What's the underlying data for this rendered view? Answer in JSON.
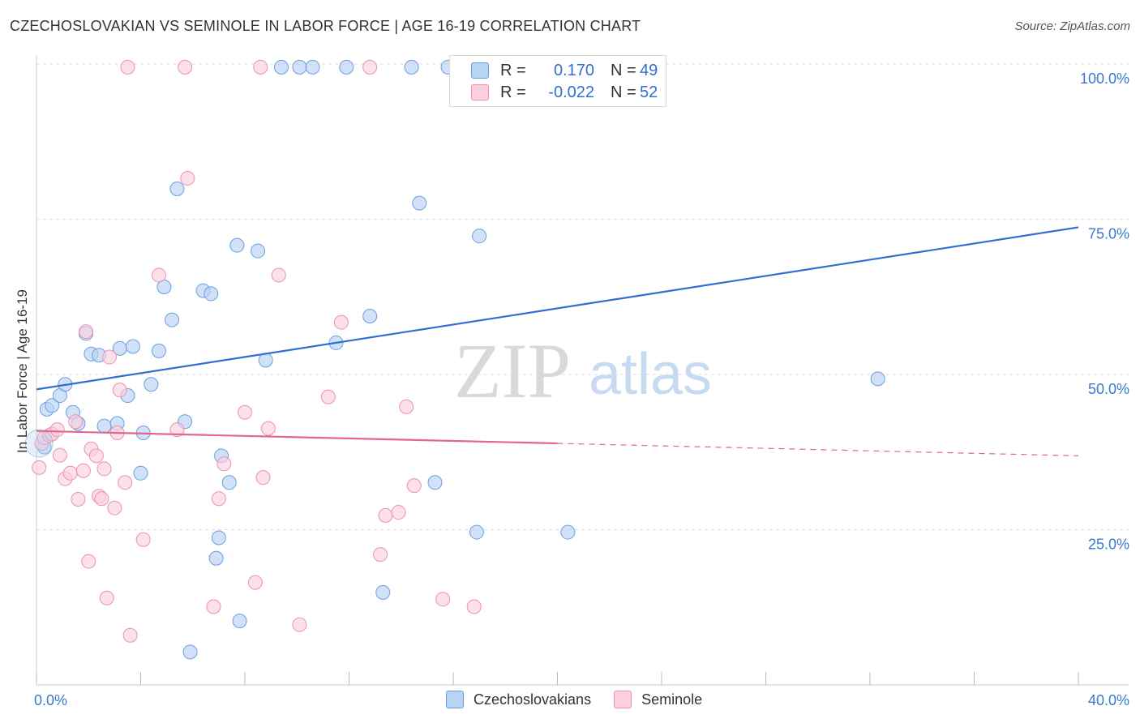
{
  "title": "CZECHOSLOVAKIAN VS SEMINOLE IN LABOR FORCE | AGE 16-19 CORRELATION CHART",
  "source": "Source: ZipAtlas.com",
  "watermark": {
    "zip": "ZIP",
    "atlas": "atlas"
  },
  "legend": {
    "rows": [
      {
        "r_label": "R =",
        "r_value": "0.170",
        "n_label": "N =",
        "n_value": "49"
      },
      {
        "r_label": "R =",
        "r_value": "-0.022",
        "n_label": "N =",
        "n_value": "52"
      }
    ]
  },
  "bottom_legend": {
    "series1": "Czechoslovakians",
    "series2": "Seminole"
  },
  "colors": {
    "blue_fill": "#b8d3f4",
    "blue_stroke": "#6a9ee0",
    "blue_line": "#2f6fd2",
    "pink_fill": "#fbd0de",
    "pink_stroke": "#ee8fb0",
    "pink_line": "#e2668f",
    "grid": "#dddddd",
    "tick_text": "#3a78d0"
  },
  "chart_data": {
    "type": "scatter",
    "title": "CZECHOSLOVAKIAN VS SEMINOLE IN LABOR FORCE | AGE 16-19 CORRELATION CHART",
    "xlabel": "",
    "ylabel": "In Labor Force | Age 16-19",
    "xlim": [
      0,
      40
    ],
    "ylim": [
      0,
      100
    ],
    "x_tick_labels": [
      "0.0%",
      "40.0%"
    ],
    "y_ticks": [
      25,
      50,
      75,
      100
    ],
    "y_tick_labels": [
      "25.0%",
      "50.0%",
      "75.0%",
      "100.0%"
    ],
    "series": [
      {
        "name": "Czechoslovakians",
        "r": 0.17,
        "n": 49,
        "trend": {
          "x": [
            0,
            40
          ],
          "y": [
            47.6,
            73.7
          ]
        },
        "points": [
          {
            "x": 0.3,
            "y": 38.3
          },
          {
            "x": 0.4,
            "y": 44.4
          },
          {
            "x": 0.6,
            "y": 45.0
          },
          {
            "x": 0.9,
            "y": 46.6
          },
          {
            "x": 1.1,
            "y": 48.4
          },
          {
            "x": 1.4,
            "y": 43.9
          },
          {
            "x": 1.6,
            "y": 42.1
          },
          {
            "x": 1.9,
            "y": 56.6
          },
          {
            "x": 2.1,
            "y": 53.3
          },
          {
            "x": 2.4,
            "y": 53.1
          },
          {
            "x": 2.6,
            "y": 41.7
          },
          {
            "x": 3.1,
            "y": 42.1
          },
          {
            "x": 3.2,
            "y": 54.2
          },
          {
            "x": 3.5,
            "y": 46.6
          },
          {
            "x": 3.7,
            "y": 54.5
          },
          {
            "x": 4.0,
            "y": 34.1
          },
          {
            "x": 4.1,
            "y": 40.6
          },
          {
            "x": 4.4,
            "y": 48.4
          },
          {
            "x": 4.7,
            "y": 53.8
          },
          {
            "x": 4.9,
            "y": 64.1
          },
          {
            "x": 5.2,
            "y": 58.8
          },
          {
            "x": 5.4,
            "y": 79.9
          },
          {
            "x": 5.7,
            "y": 42.4
          },
          {
            "x": 5.9,
            "y": 5.3
          },
          {
            "x": 6.4,
            "y": 63.5
          },
          {
            "x": 6.7,
            "y": 63.0
          },
          {
            "x": 6.9,
            "y": 20.4
          },
          {
            "x": 7.1,
            "y": 36.9
          },
          {
            "x": 7.4,
            "y": 32.6
          },
          {
            "x": 7.7,
            "y": 70.8
          },
          {
            "x": 7.8,
            "y": 10.3
          },
          {
            "x": 8.5,
            "y": 69.9
          },
          {
            "x": 8.8,
            "y": 52.3
          },
          {
            "x": 9.4,
            "y": 99.5
          },
          {
            "x": 10.1,
            "y": 99.5
          },
          {
            "x": 10.6,
            "y": 99.5
          },
          {
            "x": 11.5,
            "y": 55.1
          },
          {
            "x": 11.9,
            "y": 99.5
          },
          {
            "x": 12.8,
            "y": 59.4
          },
          {
            "x": 13.3,
            "y": 14.9
          },
          {
            "x": 14.4,
            "y": 99.5
          },
          {
            "x": 14.7,
            "y": 77.6
          },
          {
            "x": 15.3,
            "y": 32.6
          },
          {
            "x": 15.8,
            "y": 99.5
          },
          {
            "x": 16.9,
            "y": 24.6
          },
          {
            "x": 17.0,
            "y": 72.3
          },
          {
            "x": 20.4,
            "y": 24.6
          },
          {
            "x": 32.3,
            "y": 49.3
          },
          {
            "x": 7.0,
            "y": 23.7
          }
        ]
      },
      {
        "name": "Seminole",
        "r": -0.022,
        "n": 52,
        "trend": {
          "x": [
            0,
            20
          ],
          "y": [
            40.9,
            38.9
          ],
          "dashed_to": {
            "x": 40,
            "y": 36.9
          }
        },
        "points": [
          {
            "x": 0.1,
            "y": 35.0
          },
          {
            "x": 0.2,
            "y": 38.9
          },
          {
            "x": 0.3,
            "y": 39.8
          },
          {
            "x": 0.5,
            "y": 40.2
          },
          {
            "x": 0.6,
            "y": 40.4
          },
          {
            "x": 0.8,
            "y": 41.1
          },
          {
            "x": 0.9,
            "y": 37.0
          },
          {
            "x": 1.1,
            "y": 33.2
          },
          {
            "x": 1.3,
            "y": 34.1
          },
          {
            "x": 1.5,
            "y": 42.4
          },
          {
            "x": 1.6,
            "y": 29.9
          },
          {
            "x": 1.8,
            "y": 34.5
          },
          {
            "x": 1.9,
            "y": 56.9
          },
          {
            "x": 2.0,
            "y": 19.9
          },
          {
            "x": 2.1,
            "y": 38.0
          },
          {
            "x": 2.3,
            "y": 36.9
          },
          {
            "x": 2.4,
            "y": 30.4
          },
          {
            "x": 2.5,
            "y": 30.0
          },
          {
            "x": 2.6,
            "y": 34.8
          },
          {
            "x": 2.7,
            "y": 14.0
          },
          {
            "x": 2.8,
            "y": 52.8
          },
          {
            "x": 3.0,
            "y": 28.5
          },
          {
            "x": 3.1,
            "y": 40.6
          },
          {
            "x": 3.2,
            "y": 47.5
          },
          {
            "x": 3.4,
            "y": 32.6
          },
          {
            "x": 3.5,
            "y": 99.5
          },
          {
            "x": 3.6,
            "y": 8.0
          },
          {
            "x": 4.1,
            "y": 23.4
          },
          {
            "x": 4.7,
            "y": 66.0
          },
          {
            "x": 5.4,
            "y": 41.1
          },
          {
            "x": 5.7,
            "y": 99.5
          },
          {
            "x": 5.8,
            "y": 81.6
          },
          {
            "x": 6.8,
            "y": 12.6
          },
          {
            "x": 7.0,
            "y": 30.0
          },
          {
            "x": 7.2,
            "y": 35.6
          },
          {
            "x": 8.0,
            "y": 43.9
          },
          {
            "x": 8.4,
            "y": 16.5
          },
          {
            "x": 8.7,
            "y": 33.4
          },
          {
            "x": 8.9,
            "y": 41.3
          },
          {
            "x": 8.6,
            "y": 99.5
          },
          {
            "x": 9.3,
            "y": 66.0
          },
          {
            "x": 10.1,
            "y": 9.7
          },
          {
            "x": 11.2,
            "y": 46.4
          },
          {
            "x": 11.7,
            "y": 58.4
          },
          {
            "x": 12.8,
            "y": 99.5
          },
          {
            "x": 13.2,
            "y": 21.0
          },
          {
            "x": 13.4,
            "y": 27.3
          },
          {
            "x": 13.9,
            "y": 27.8
          },
          {
            "x": 14.2,
            "y": 44.8
          },
          {
            "x": 14.5,
            "y": 32.1
          },
          {
            "x": 15.6,
            "y": 13.8
          },
          {
            "x": 16.8,
            "y": 12.6
          }
        ]
      }
    ]
  }
}
